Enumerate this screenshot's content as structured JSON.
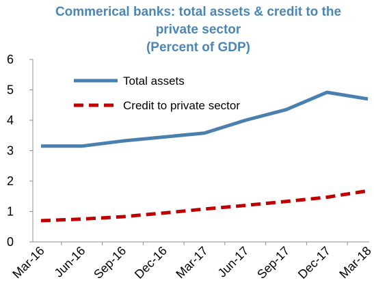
{
  "chart_data": {
    "type": "line",
    "title_lines": [
      "Commerical banks: total assets & credit to  the",
      "private sector",
      "(Percent of GDP)"
    ],
    "categories": [
      "Mar-16",
      "Jun-16",
      "Sep-16",
      "Dec-16",
      "Mar-17",
      "Jun-17",
      "Sep-17",
      "Dec-17",
      "Mar-18"
    ],
    "yticks": [
      "0",
      "1",
      "2",
      "3",
      "4",
      "5",
      "6"
    ],
    "ylim": [
      0,
      6
    ],
    "grid": false,
    "legend_position": "upper-left",
    "series": [
      {
        "name": "Total assets",
        "color": "#4a80b0",
        "style": "solid",
        "values": [
          3.15,
          3.15,
          3.32,
          3.45,
          3.58,
          4.0,
          4.35,
          4.92,
          4.7
        ]
      },
      {
        "name": "Credit to private sector",
        "color": "#c00000",
        "style": "dashed",
        "values": [
          0.7,
          0.75,
          0.83,
          0.95,
          1.08,
          1.2,
          1.33,
          1.47,
          1.68
        ]
      }
    ]
  }
}
